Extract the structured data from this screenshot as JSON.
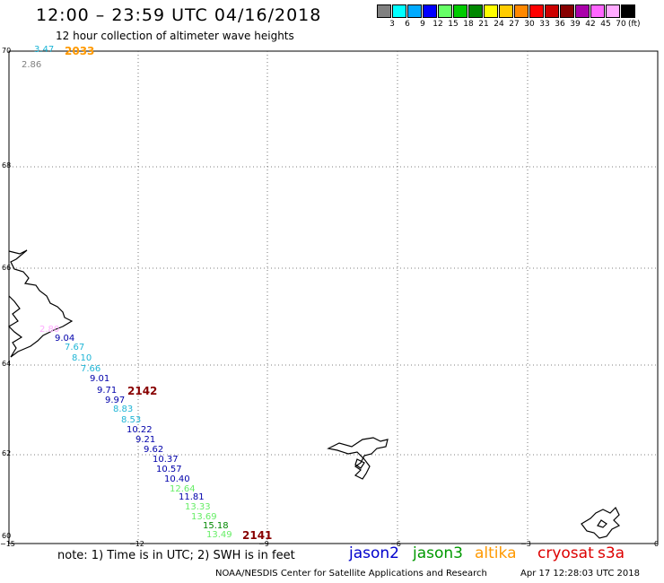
{
  "header": {
    "title": "12:00 – 23:59 UTC 04/16/2018",
    "subtitle": "12 hour collection of altimeter wave heights"
  },
  "legend": {
    "colors": [
      "#808080",
      "#00ffff",
      "#00aaff",
      "#0000ff",
      "#66ff66",
      "#00cc00",
      "#008800",
      "#ffff00",
      "#ffcc00",
      "#ff8800",
      "#ff0000",
      "#cc0000",
      "#880000",
      "#aa00aa",
      "#ff66ff",
      "#ffaaff",
      "#000000"
    ],
    "ticks": [
      "3",
      "6",
      "9",
      "12",
      "15",
      "18",
      "21",
      "24",
      "27",
      "30",
      "33",
      "36",
      "39",
      "42",
      "45",
      "70"
    ],
    "unit": "(ft)"
  },
  "map": {
    "lon_range": [
      -15,
      0
    ],
    "lat_range": [
      60,
      70
    ],
    "lon_ticks": [
      "−15",
      "−12",
      "−9",
      "−6",
      "−3",
      "0"
    ],
    "lat_ticks": [
      "70",
      "66",
      "64",
      "62",
      "60"
    ],
    "lat_tick_68": "68",
    "grid": "dotted"
  },
  "observations": [
    {
      "text": "3.47",
      "color": "#1fb5d6"
    },
    {
      "text": "2.86",
      "color": "#808080"
    },
    {
      "text": "2.80",
      "color": "#ffaaff"
    },
    {
      "text": "9.04",
      "color": "#0000aa"
    },
    {
      "text": "7.67",
      "color": "#1fb5d6"
    },
    {
      "text": "8.10",
      "color": "#1fb5d6"
    },
    {
      "text": "7.66",
      "color": "#1fb5d6"
    },
    {
      "text": "9.01",
      "color": "#0000aa"
    },
    {
      "text": "9.71",
      "color": "#0000aa"
    },
    {
      "text": "9.97",
      "color": "#0000aa"
    },
    {
      "text": "8.83",
      "color": "#1fb5d6"
    },
    {
      "text": "8.53",
      "color": "#1fb5d6"
    },
    {
      "text": "10.22",
      "color": "#0000aa"
    },
    {
      "text": "9.21",
      "color": "#0000aa"
    },
    {
      "text": "9.62",
      "color": "#0000aa"
    },
    {
      "text": "10.37",
      "color": "#0000aa"
    },
    {
      "text": "10.57",
      "color": "#0000aa"
    },
    {
      "text": "10.40",
      "color": "#0000aa"
    },
    {
      "text": "12.64",
      "color": "#66ee66"
    },
    {
      "text": "11.81",
      "color": "#0000aa"
    },
    {
      "text": "13.33",
      "color": "#66ee66"
    },
    {
      "text": "13.69",
      "color": "#66ee66"
    },
    {
      "text": "15.18",
      "color": "#008800"
    },
    {
      "text": "13.49",
      "color": "#66ee66"
    }
  ],
  "pass_times": [
    {
      "text": "2033",
      "color": "#ff9900"
    },
    {
      "text": "2142",
      "color": "#880000"
    },
    {
      "text": "2141",
      "color": "#880000"
    }
  ],
  "footer": {
    "note": "note:  1) Time is in UTC;  2) SWH is in feet",
    "satellites": [
      {
        "name": "jason2",
        "color": "#0000cc"
      },
      {
        "name": "jason3",
        "color": "#009900"
      },
      {
        "name": "altika",
        "color": "#ff9900"
      },
      {
        "name": "cryosat",
        "color": "#dd0000"
      },
      {
        "name": "s3a",
        "color": "#dd0000"
      }
    ],
    "credit": "NOAA/NESDIS Center for Satellite Applications and Research",
    "timestamp": "Apr 17 12:28:03 UTC 2018"
  }
}
